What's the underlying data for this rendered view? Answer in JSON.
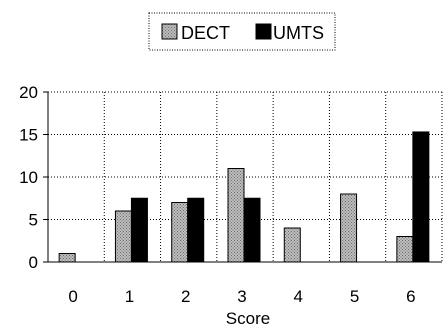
{
  "chart_data": {
    "type": "bar",
    "title": "",
    "xlabel": "Score",
    "ylabel": "",
    "categories": [
      "0",
      "1",
      "2",
      "3",
      "4",
      "5",
      "6"
    ],
    "series": [
      {
        "name": "DECT",
        "values": [
          1,
          6,
          7,
          11,
          4,
          8,
          3
        ],
        "color": "#a8a8a8",
        "pattern": "dotted-gray"
      },
      {
        "name": "UMTS",
        "values": [
          0,
          7.5,
          7.5,
          7.5,
          0,
          0,
          15.3
        ],
        "color": "#000000",
        "pattern": "solid"
      }
    ],
    "ylim": [
      0,
      20
    ],
    "yticks": [
      "0",
      "5",
      "10",
      "15",
      "20"
    ],
    "grid": true,
    "grid_style": "dotted",
    "legend": "top-center, boxed"
  }
}
